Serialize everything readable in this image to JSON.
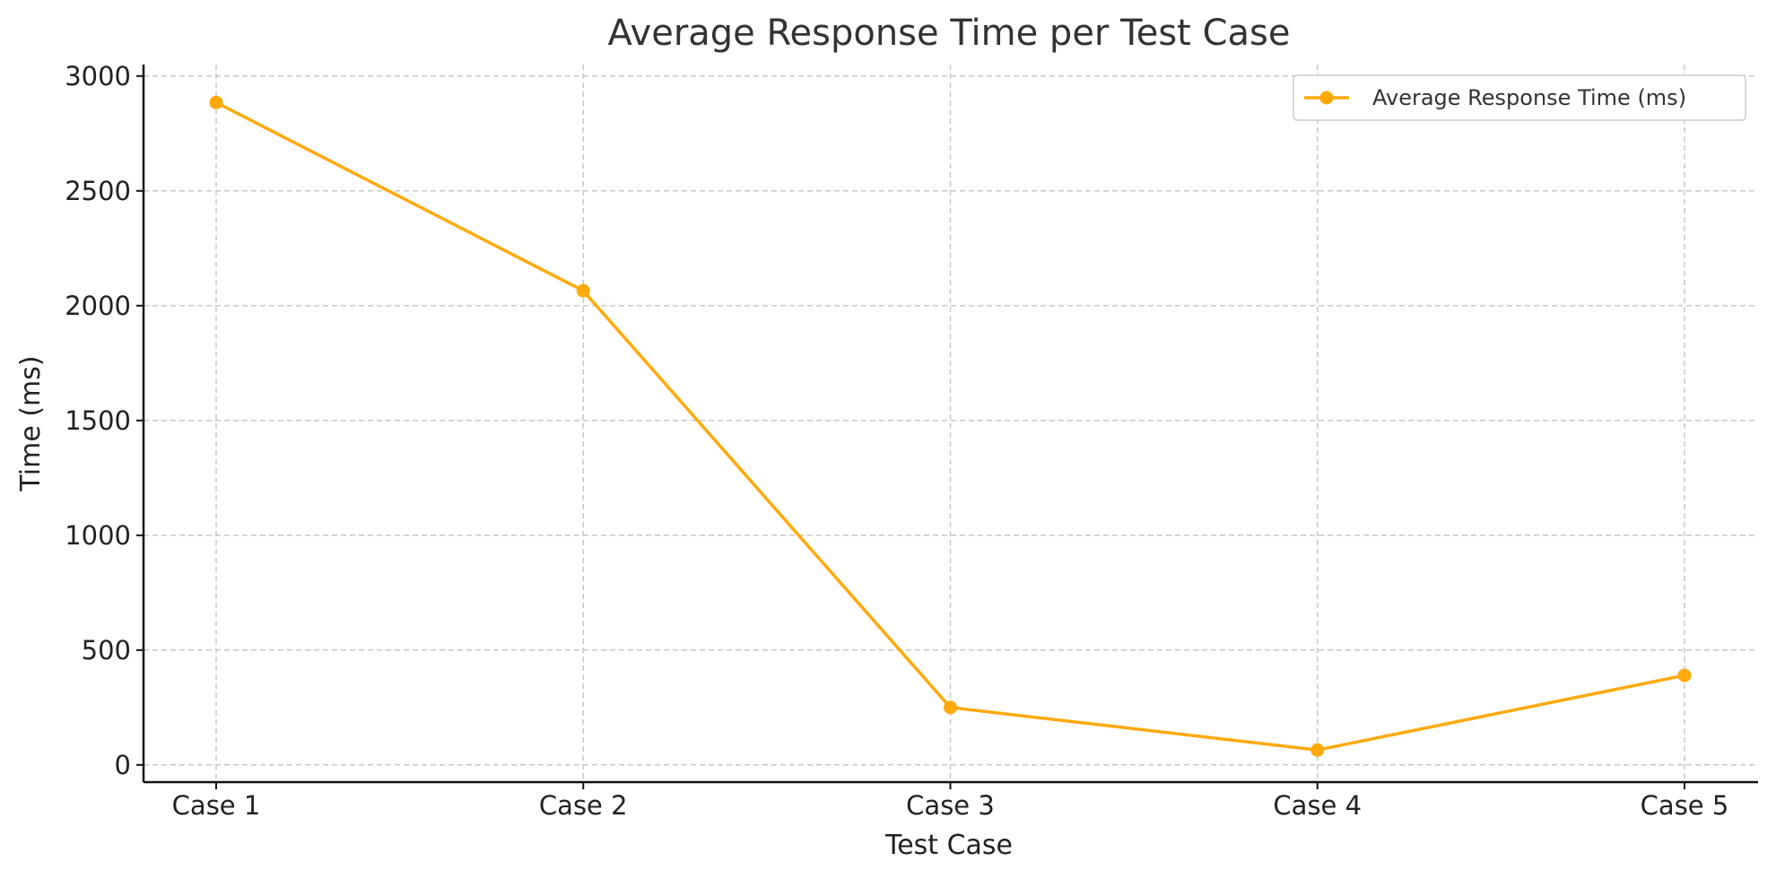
{
  "chart_data": {
    "type": "line",
    "title": "Average Response Time per Test Case",
    "xlabel": "Test Case",
    "ylabel": "Time (ms)",
    "categories": [
      "Case 1",
      "Case 2",
      "Case 3",
      "Case 4",
      "Case 5"
    ],
    "series": [
      {
        "name": "Average Response Time (ms)",
        "values": [
          2885,
          2065,
          250,
          65,
          390
        ],
        "color": "#FFA90A",
        "marker": "circle"
      }
    ],
    "ylim": [
      -75,
      3050
    ],
    "yticks": [
      0,
      500,
      1000,
      1500,
      2000,
      2500,
      3000
    ],
    "grid": true,
    "legend": "top-right"
  }
}
